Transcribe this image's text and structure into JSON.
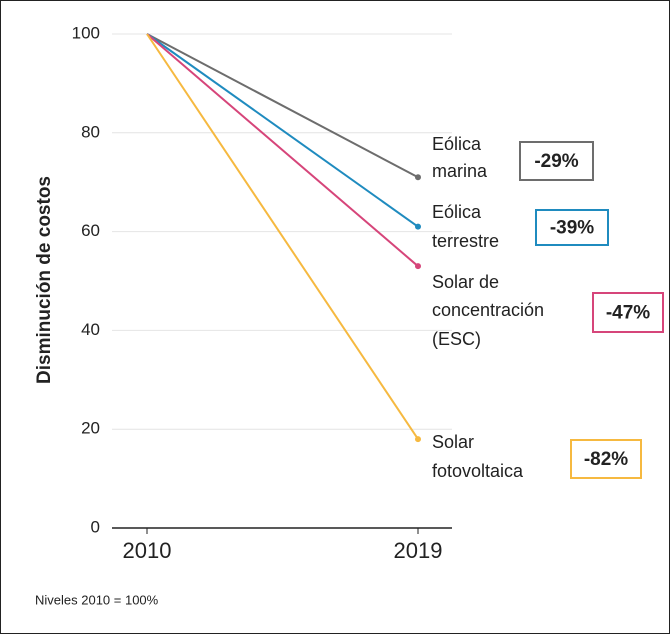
{
  "chart_data": {
    "type": "line",
    "y_axis_label": "Disminución de costos",
    "categories": [
      "2010",
      "2019"
    ],
    "ylim": [
      0,
      100
    ],
    "yticks": [
      0,
      20,
      40,
      60,
      80,
      100
    ],
    "grid": true,
    "series": [
      {
        "label": [
          "Eólica",
          "marina"
        ],
        "color": "#6d6d6d",
        "values": [
          100,
          71
        ],
        "annotation": "-29%"
      },
      {
        "label": [
          "Eólica",
          "terrestre"
        ],
        "color": "#1f8bbf",
        "values": [
          100,
          61
        ],
        "annotation": "-39%"
      },
      {
        "label": [
          "Solar de",
          "concentración",
          "(ESC)"
        ],
        "color": "#d6457a",
        "values": [
          100,
          53
        ],
        "annotation": "-47%"
      },
      {
        "label": [
          "Solar",
          "fotovoltaica"
        ],
        "color": "#f6b940",
        "values": [
          100,
          18
        ],
        "annotation": "-82%"
      }
    ],
    "footnote": "Niveles 2010 = 100%"
  }
}
